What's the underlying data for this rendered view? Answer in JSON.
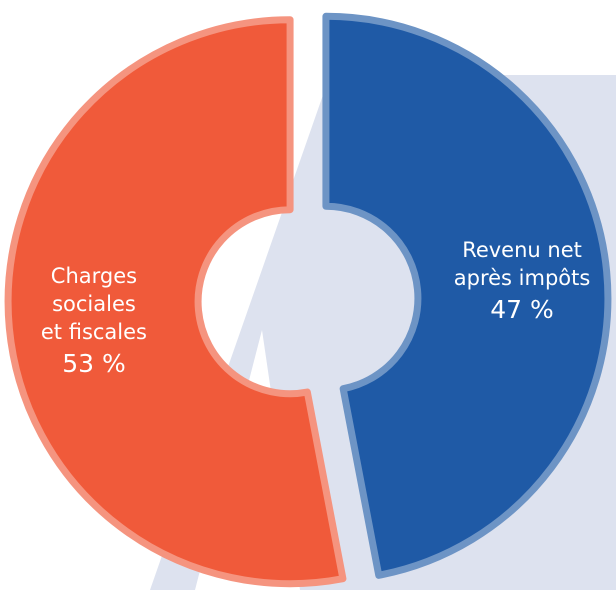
{
  "chart_data": {
    "type": "donut",
    "categories": [
      "Revenu net après impôts",
      "Charges sociales et fiscales"
    ],
    "values": [
      47,
      53
    ],
    "value_labels": [
      "47 %",
      "53 %"
    ],
    "colors": [
      "#1f5aa6",
      "#f05a3a"
    ]
  }
}
